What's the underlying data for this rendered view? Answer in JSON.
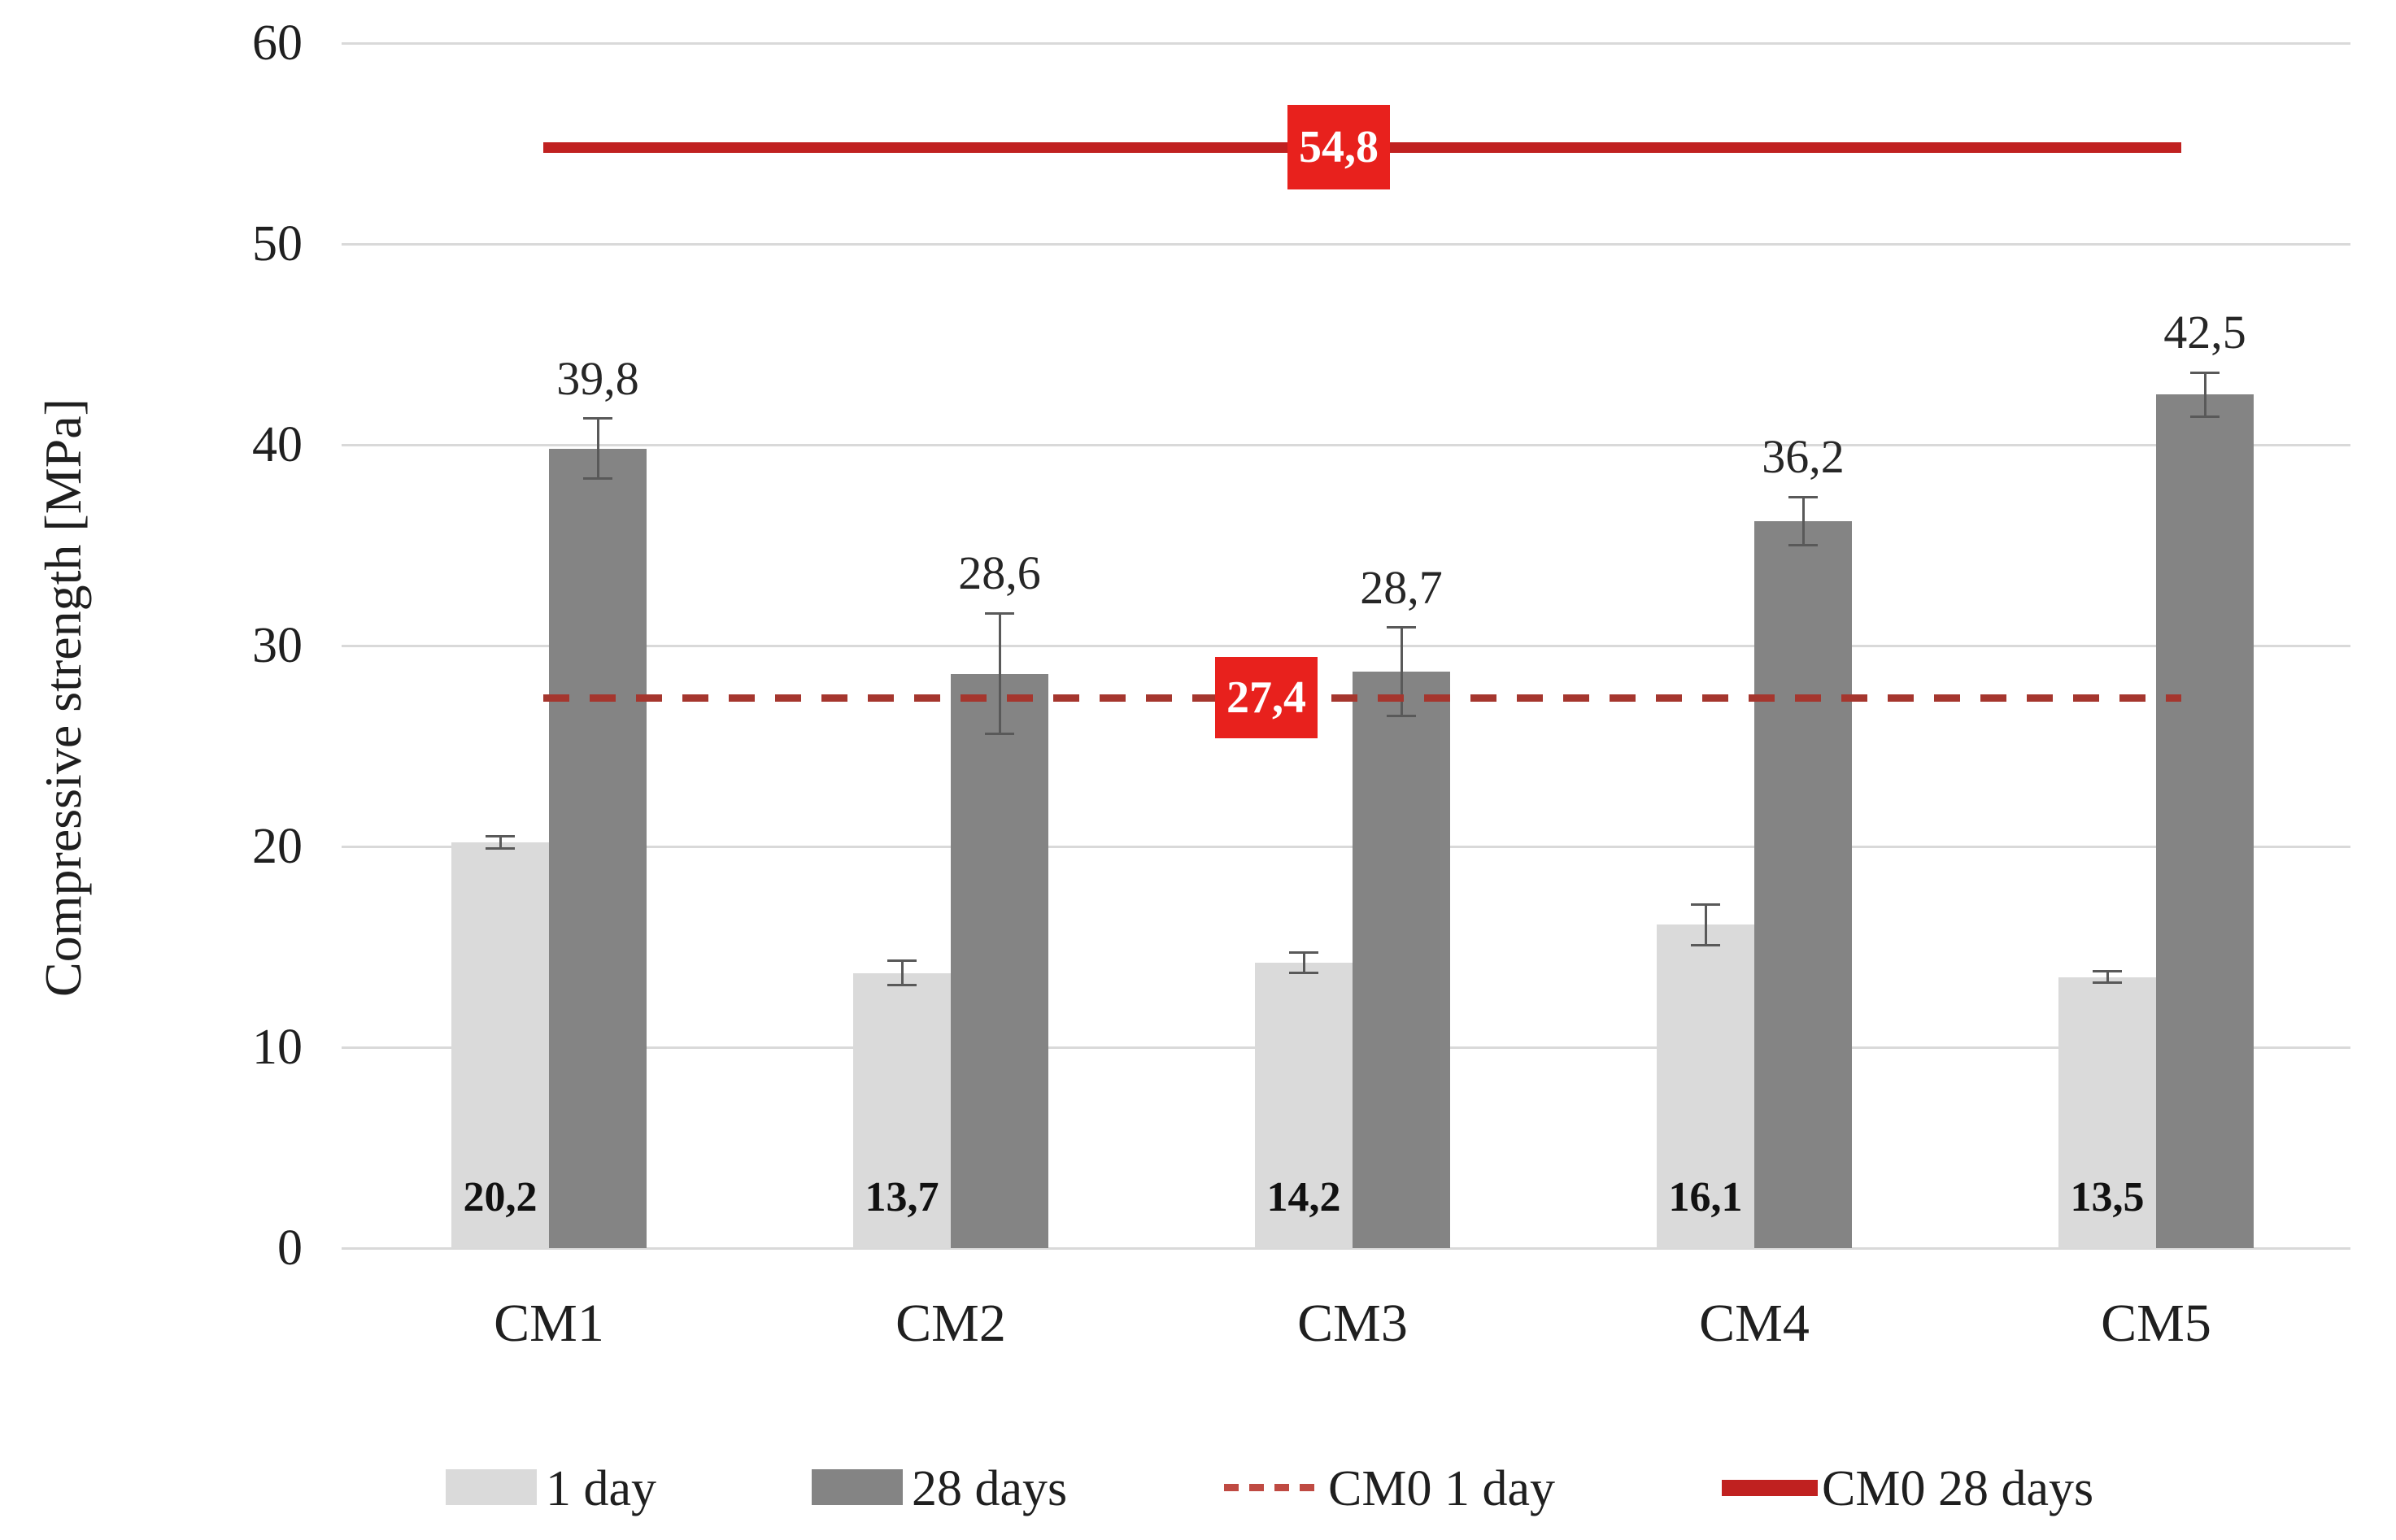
{
  "chart_data": {
    "type": "bar",
    "title": "",
    "xlabel": "",
    "ylabel": "Compressive strength [MPa]",
    "ylim": [
      0,
      60
    ],
    "yticks": [
      0,
      10,
      20,
      30,
      40,
      50,
      60
    ],
    "grid": true,
    "legend_position": "bottom",
    "categories": [
      "CM1",
      "CM2",
      "CM3",
      "CM4",
      "CM5"
    ],
    "series": [
      {
        "name": "1 day",
        "color": "#dadada",
        "values": [
          20.2,
          13.7,
          14.2,
          16.1,
          13.5
        ],
        "value_labels": [
          "20,2",
          "13,7",
          "14,2",
          "16,1",
          "13,5"
        ],
        "errors": [
          0.3,
          0.6,
          0.5,
          1.0,
          0.3
        ]
      },
      {
        "name": "28 days",
        "color": "#848484",
        "values": [
          39.8,
          28.6,
          28.7,
          36.2,
          42.5
        ],
        "value_labels": [
          "39,8",
          "28,6",
          "28,7",
          "36,2",
          "42,5"
        ],
        "errors": [
          1.5,
          3.0,
          2.2,
          1.2,
          1.1
        ]
      }
    ],
    "reference_lines": [
      {
        "name": "CM0 1 day",
        "value": 27.4,
        "label": "27,4",
        "style": "dashed",
        "color": "#a5362e",
        "label_box_color": "#e8211d"
      },
      {
        "name": "CM0 28 days",
        "value": 54.8,
        "label": "54,8",
        "style": "solid",
        "color": "#c02120",
        "label_box_color": "#e8211d"
      }
    ]
  },
  "colors": {
    "gridline": "#d9d9d9",
    "error_bar": "#595959",
    "axis_text": "#1f1f1f",
    "ref_label_text": "#ffffff"
  }
}
